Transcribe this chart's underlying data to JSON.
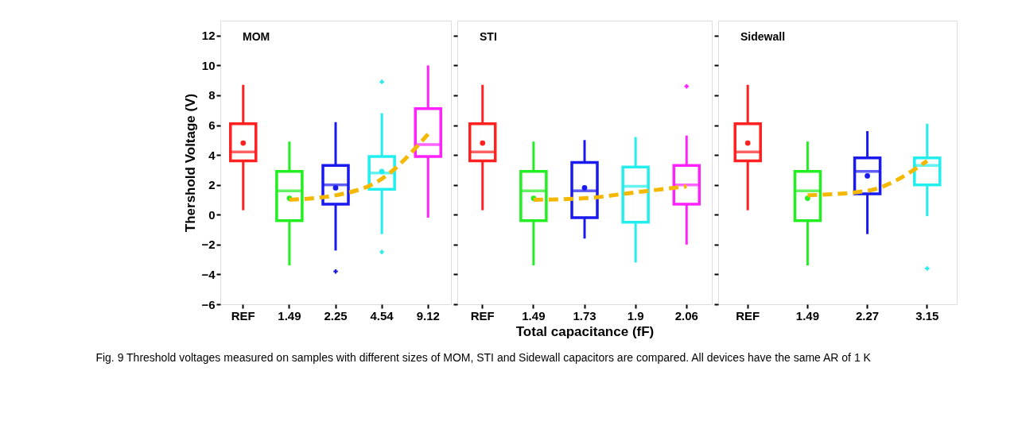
{
  "chart_data": [
    {
      "type": "box",
      "title": "MOM",
      "ylabel": "Thershold Voltage (V)",
      "categories": [
        "REF",
        "1.49",
        "2.25",
        "4.54",
        "9.12"
      ],
      "ylim": [
        -6,
        13
      ],
      "yticks": [
        -6,
        -4,
        -2,
        0,
        2,
        4,
        6,
        8,
        10,
        12
      ],
      "grid": false,
      "annotations": [
        "Fig. 9  Threshold voltages measured on samples with different sizes of MOM, STI and Sidewall capacitors are compared. All devices have the same AR of 1 K"
      ],
      "series": [
        {
          "type": "box",
          "colors": [
            "#ff2020",
            "#22ee22",
            "#1a1aee",
            "#22eeee",
            "#ff22ff"
          ],
          "boxes": [
            {
              "low": 0.3,
              "q1": 3.6,
              "median": 4.2,
              "q3": 6.1,
              "high": 8.7,
              "mean": 4.8
            },
            {
              "low": -3.4,
              "q1": -0.4,
              "median": 1.6,
              "q3": 2.9,
              "high": 4.9,
              "mean": 1.1
            },
            {
              "low": -2.4,
              "q1": 0.7,
              "median": 2.0,
              "q3": 3.3,
              "high": 6.2,
              "mean": 1.8,
              "outliers": [
                -3.8
              ]
            },
            {
              "low": -1.3,
              "q1": 1.7,
              "median": 2.8,
              "q3": 3.9,
              "high": 6.8,
              "mean": 2.9,
              "outliers": [
                8.9,
                -2.5
              ]
            },
            {
              "low": -0.2,
              "q1": 3.9,
              "median": 4.7,
              "q3": 7.1,
              "high": 10.0
            }
          ]
        },
        {
          "type": "line",
          "color": "#f5b800",
          "line_style": "dashed",
          "values": [
            null,
            1.0,
            1.3,
            2.4,
            5.4
          ]
        }
      ]
    },
    {
      "type": "box",
      "title": "STI",
      "xlabel": "Total capacitance (fF)",
      "categories": [
        "REF",
        "1.49",
        "1.73",
        "1.9",
        "2.06"
      ],
      "ylim": [
        -6,
        13
      ],
      "yticks": [
        -6,
        -4,
        -2,
        0,
        2,
        4,
        6,
        8,
        10,
        12
      ],
      "tick_labels": "x",
      "grid": false,
      "series": [
        {
          "type": "box",
          "colors": [
            "#ff2020",
            "#22ee22",
            "#1a1aee",
            "#22eeee",
            "#ff22ff"
          ],
          "boxes": [
            {
              "low": 0.3,
              "q1": 3.6,
              "median": 4.2,
              "q3": 6.1,
              "high": 8.7,
              "mean": 4.8
            },
            {
              "low": -3.4,
              "q1": -0.4,
              "median": 1.6,
              "q3": 2.9,
              "high": 4.9,
              "mean": 1.1
            },
            {
              "low": -1.6,
              "q1": -0.2,
              "median": 1.6,
              "q3": 3.5,
              "high": 5.0,
              "mean": 1.8
            },
            {
              "low": -3.2,
              "q1": -0.5,
              "median": 1.9,
              "q3": 3.2,
              "high": 5.2
            },
            {
              "low": -2.0,
              "q1": 0.7,
              "median": 2.0,
              "q3": 3.3,
              "high": 5.3,
              "outliers": [
                8.6
              ]
            }
          ]
        },
        {
          "type": "line",
          "color": "#f5b800",
          "line_style": "dashed",
          "values": [
            null,
            1.0,
            1.1,
            1.5,
            1.9
          ]
        }
      ]
    },
    {
      "type": "box",
      "title": "Sidewall",
      "categories": [
        "REF",
        "1.49",
        "2.27",
        "3.15"
      ],
      "ylim": [
        -6,
        13
      ],
      "yticks": [
        -6,
        -4,
        -2,
        0,
        2,
        4,
        6,
        8,
        10,
        12
      ],
      "tick_labels": "x",
      "grid": false,
      "series": [
        {
          "type": "box",
          "colors": [
            "#ff2020",
            "#22ee22",
            "#1a1aee",
            "#22eeee"
          ],
          "boxes": [
            {
              "low": 0.3,
              "q1": 3.6,
              "median": 4.2,
              "q3": 6.1,
              "high": 8.7,
              "mean": 4.8
            },
            {
              "low": -3.4,
              "q1": -0.4,
              "median": 1.6,
              "q3": 2.9,
              "high": 4.9,
              "mean": 1.1
            },
            {
              "low": -1.3,
              "q1": 1.4,
              "median": 2.9,
              "q3": 3.8,
              "high": 5.6,
              "mean": 2.6
            },
            {
              "low": -0.1,
              "q1": 2.0,
              "median": 3.3,
              "q3": 3.8,
              "high": 6.1,
              "outliers": [
                -3.6
              ]
            }
          ]
        },
        {
          "type": "line",
          "color": "#f5b800",
          "line_style": "dashed",
          "values": [
            null,
            1.3,
            1.6,
            3.6
          ]
        }
      ]
    }
  ]
}
